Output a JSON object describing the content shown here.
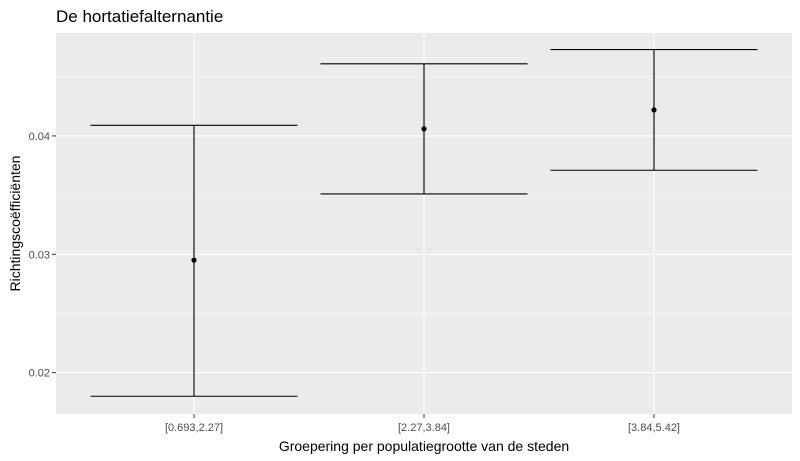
{
  "chart_data": {
    "type": "errorbar",
    "title": "De hortatiefalternantie",
    "xlabel": "Groepering per populatiegrootte van de steden",
    "ylabel": "Richtingscoëfficiënten",
    "categories": [
      "[0.693,2.27]",
      "[2.27,3.84]",
      "[3.84,5.42]"
    ],
    "points": [
      {
        "category": "[0.693,2.27]",
        "estimate": 0.0295,
        "lower": 0.018,
        "upper": 0.0409
      },
      {
        "category": "[2.27,3.84]",
        "estimate": 0.0406,
        "lower": 0.0351,
        "upper": 0.0461
      },
      {
        "category": "[3.84,5.42]",
        "estimate": 0.0422,
        "lower": 0.0371,
        "upper": 0.0473
      }
    ],
    "yticks": [
      0.02,
      0.03,
      0.04
    ],
    "ytick_labels": [
      "0.02",
      "0.03",
      "0.04"
    ],
    "ylim": [
      0.0165,
      0.0487
    ],
    "grid": true,
    "panel_background": "#ebebeb",
    "grid_color": "#ffffff",
    "mark_color": "#000000"
  }
}
